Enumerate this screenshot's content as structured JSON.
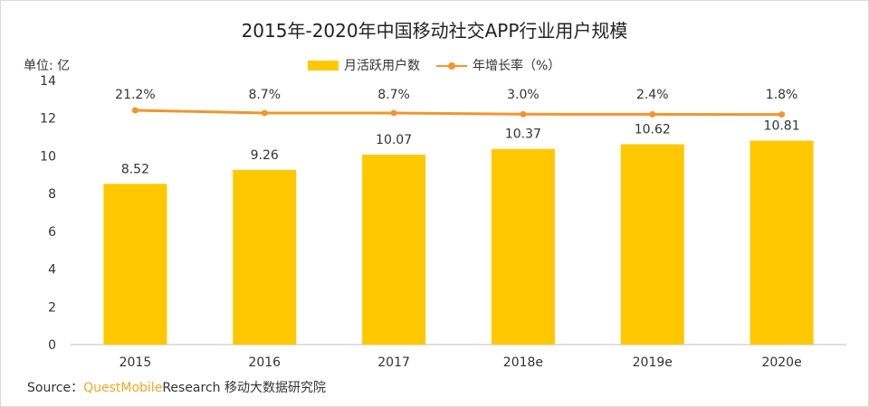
{
  "chart_data": {
    "type": "bar",
    "title": "2015年-2020年中国移动社交APP行业用户规模",
    "ylabel": "单位: 亿",
    "categories": [
      "2015",
      "2016",
      "2017",
      "2018e",
      "2019e",
      "2020e"
    ],
    "series": [
      {
        "name": "月活跃用户数",
        "type": "bar",
        "color": "#FFC800",
        "values": [
          8.52,
          9.26,
          10.07,
          10.37,
          10.62,
          10.81
        ],
        "labels": [
          "8.52",
          "9.26",
          "10.07",
          "10.37",
          "10.62",
          "10.81"
        ]
      },
      {
        "name": "年增长率（%）",
        "type": "line",
        "color": "#F0962E",
        "values": [
          21.2,
          8.7,
          8.7,
          3.0,
          2.4,
          1.8
        ],
        "labels": [
          "21.2%",
          "8.7%",
          "8.7%",
          "3.0%",
          "2.4%",
          "1.8%"
        ]
      }
    ],
    "ylim": [
      0,
      14
    ],
    "yticks": [
      "0",
      "2",
      "4",
      "6",
      "8",
      "10",
      "12",
      "14"
    ],
    "grid": false,
    "legend_position": "top"
  },
  "source": {
    "prefix": "Source：",
    "brand": "QuestMobile",
    "suffix": "Research 移动大数据研究院"
  }
}
